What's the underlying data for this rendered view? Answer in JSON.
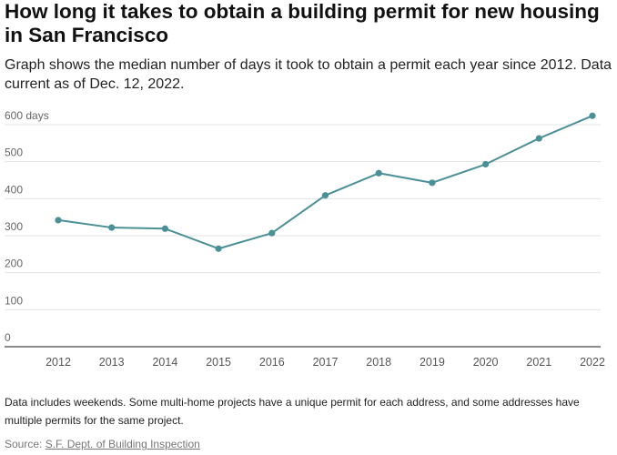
{
  "header": {
    "title": "How long it takes to obtain a building permit for new housing in San Francisco",
    "subtitle": "Graph shows the median number of days it took to obtain a permit each year since 2012. Data current as of Dec. 12, 2022."
  },
  "footer": {
    "note": "Data includes weekends. Some multi-home projects have a unique permit for each address, and some addresses have multiple permits for the same project.",
    "source_label": "Source: ",
    "source_link": "S.F. Dept. of Building Inspection"
  },
  "chart_data": {
    "type": "line",
    "x": [
      2012,
      2013,
      2014,
      2015,
      2016,
      2017,
      2018,
      2019,
      2020,
      2021,
      2022
    ],
    "y_tick_labels": [
      "0",
      "100",
      "200",
      "300",
      "400",
      "500",
      "600 days"
    ],
    "y_ticks": [
      0,
      100,
      200,
      300,
      400,
      500,
      600
    ],
    "ylim": [
      0,
      600
    ],
    "grid": true,
    "series": [
      {
        "values": [
          342,
          322,
          319,
          265,
          307,
          409,
          469,
          443,
          493,
          563,
          624
        ]
      }
    ],
    "colors": {
      "line": "#4a9096",
      "grid": "#e3e3e3",
      "axis": "#444444"
    }
  }
}
